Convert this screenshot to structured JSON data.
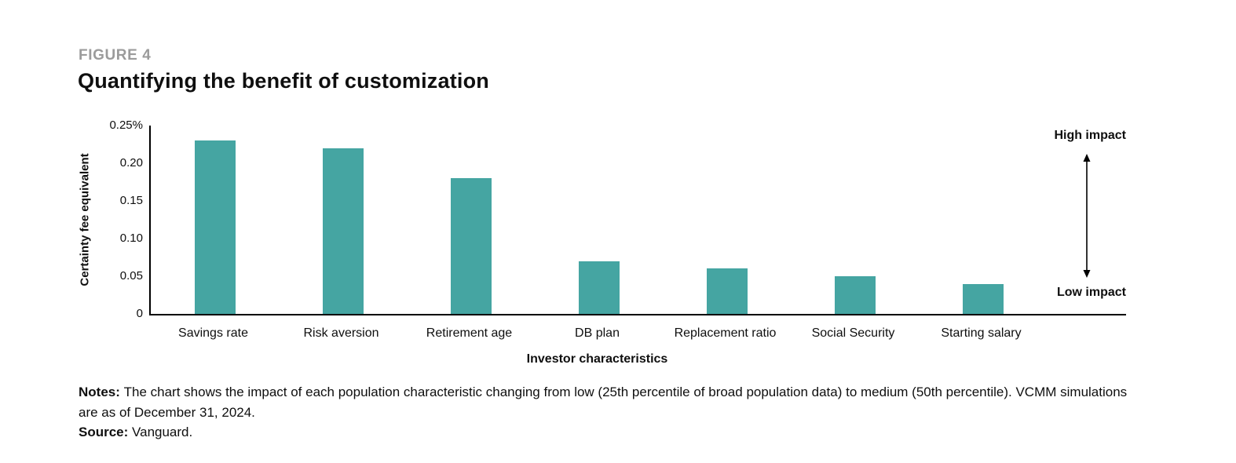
{
  "header": {
    "figure_label": "FIGURE 4",
    "title": "Quantifying the benefit of customization"
  },
  "chart_data": {
    "type": "bar",
    "title": "Quantifying the benefit of customization",
    "categories": [
      "Savings rate",
      "Risk aversion",
      "Retirement age",
      "DB plan",
      "Replacement ratio",
      "Social Security",
      "Starting salary"
    ],
    "values": [
      0.23,
      0.22,
      0.18,
      0.07,
      0.06,
      0.05,
      0.04
    ],
    "xlabel": "Investor characteristics",
    "ylabel": "Certainty fee equivalent",
    "ylim": [
      0,
      0.25
    ],
    "yticks": [
      {
        "value": 0.25,
        "label": "0.25%"
      },
      {
        "value": 0.2,
        "label": "0.20"
      },
      {
        "value": 0.15,
        "label": "0.15"
      },
      {
        "value": 0.1,
        "label": "0.10"
      },
      {
        "value": 0.05,
        "label": "0.05"
      },
      {
        "value": 0,
        "label": "0"
      }
    ],
    "bar_color": "#45a5a2",
    "grid": false,
    "legend": "none",
    "annotations": {
      "high": "High impact",
      "low": "Low impact"
    }
  },
  "notes": {
    "label": "Notes:",
    "text": "The chart shows the impact of each population characteristic changing from low (25th percentile of broad population data) to medium (50th percentile). VCMM simulations are as of December 31, 2024.",
    "source_label": "Source:",
    "source_text": "Vanguard."
  }
}
